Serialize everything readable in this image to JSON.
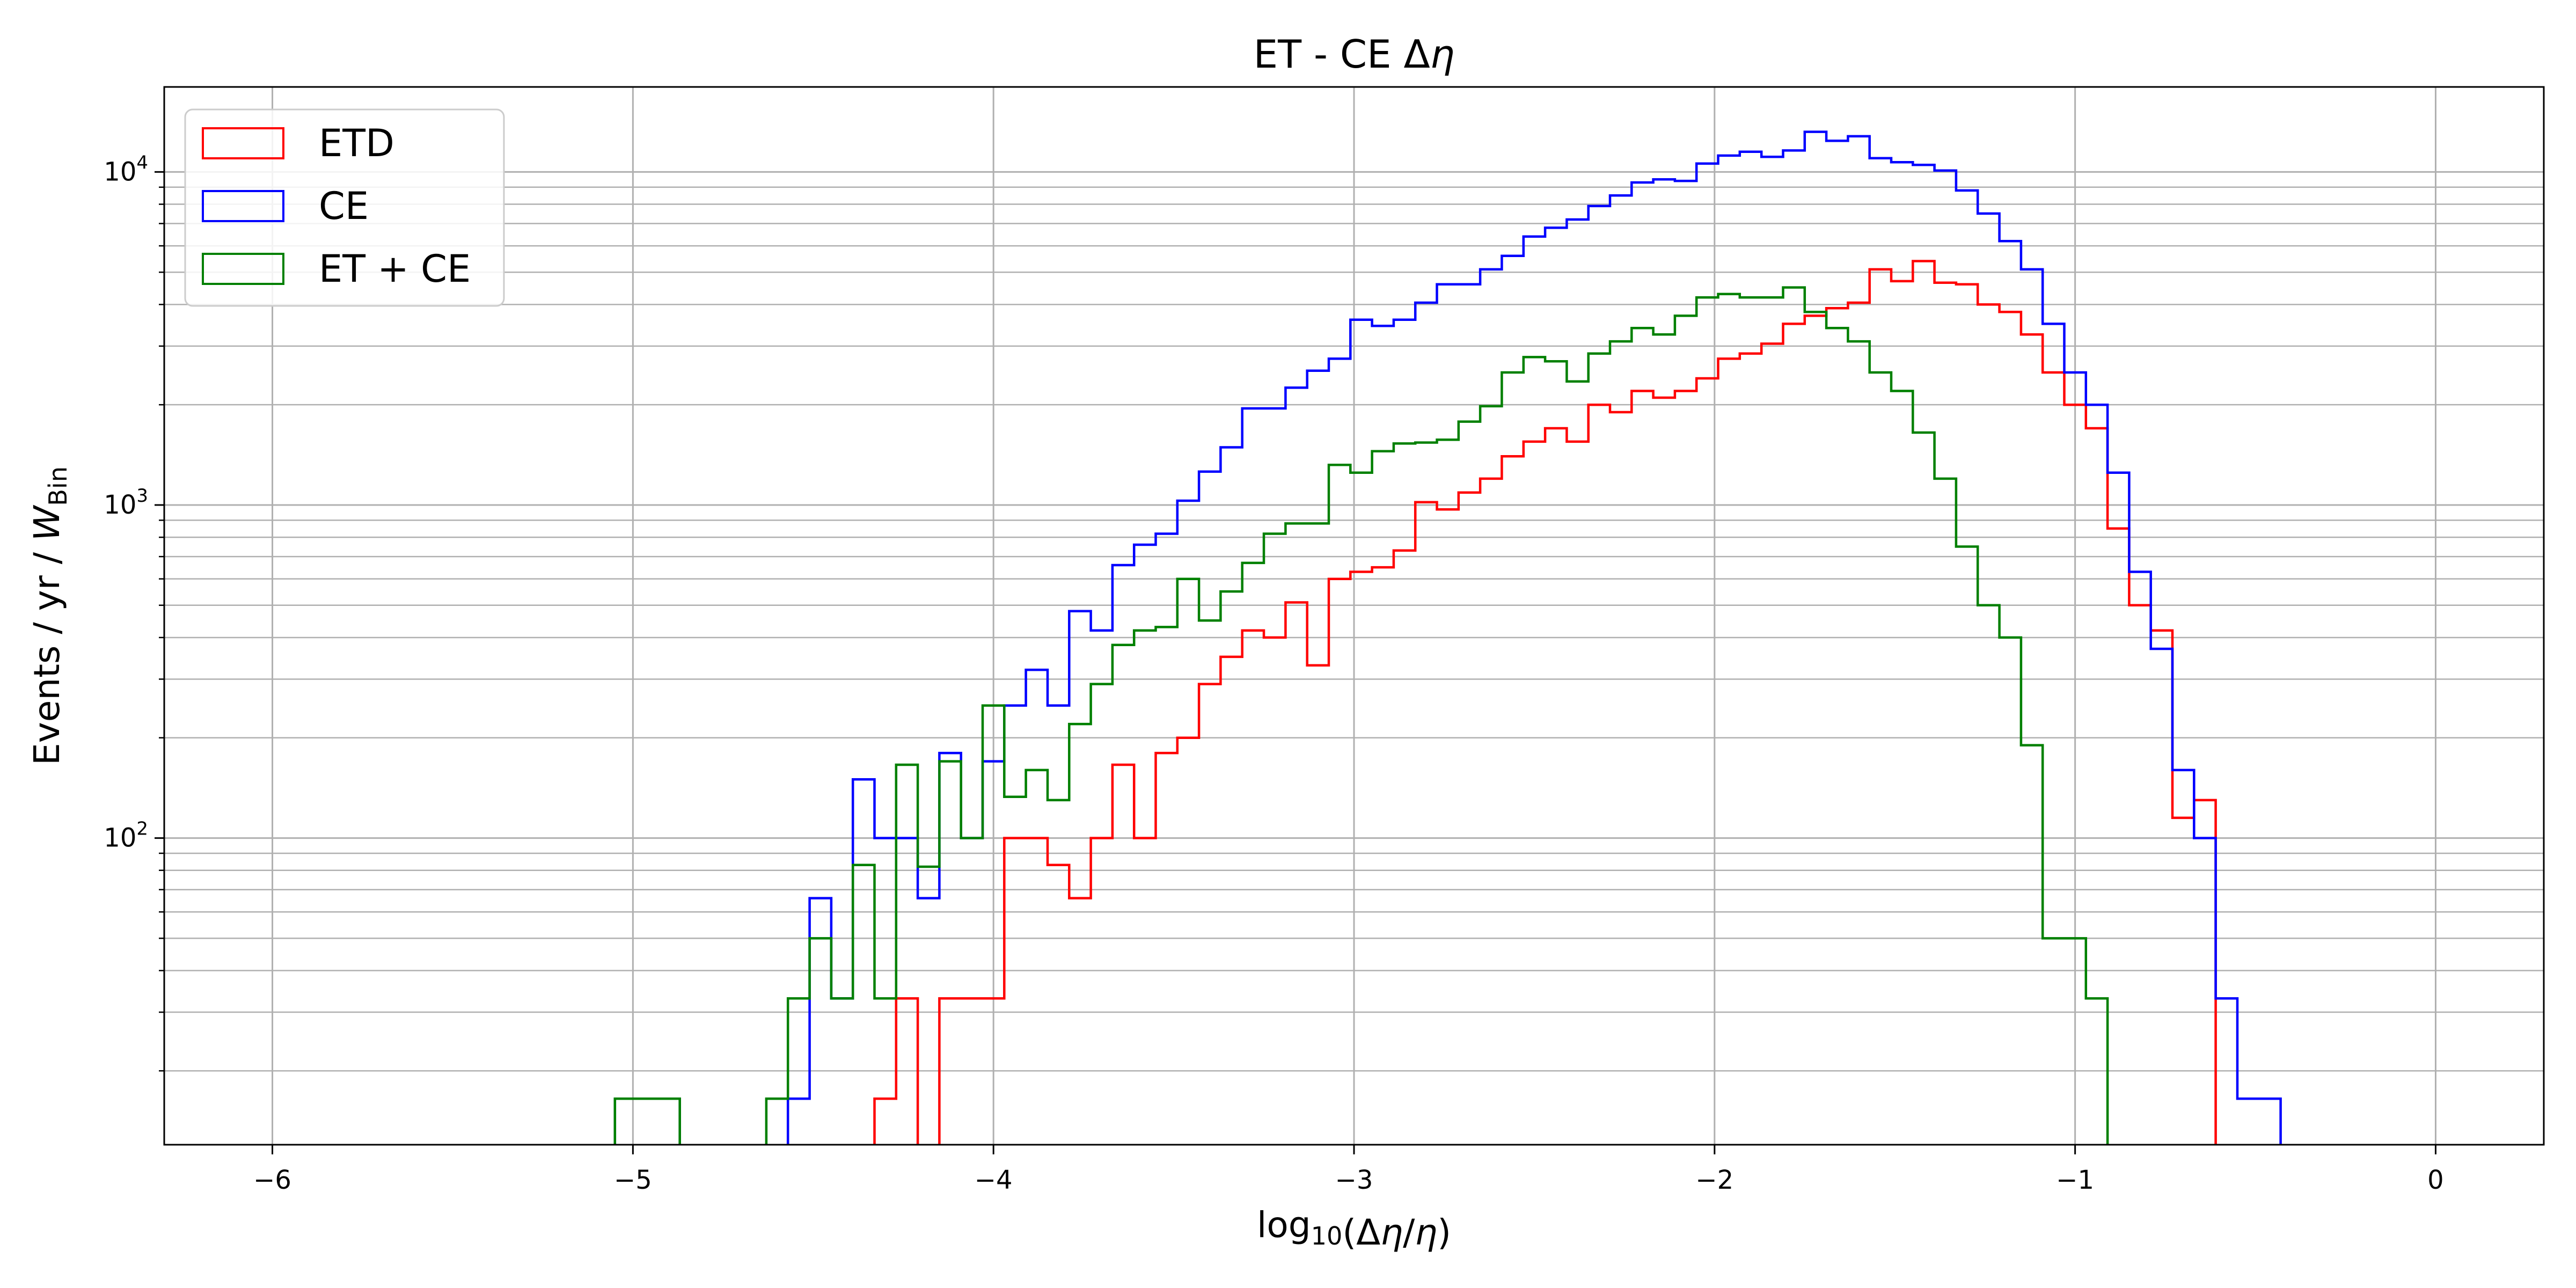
{
  "chart_data": {
    "type": "step-histogram",
    "title": "ET - CE Δη",
    "xlabel": "log10(Δη/η)",
    "ylabel": "Events / yr / W_Bin",
    "xlim": [
      -6.3,
      0.3
    ],
    "ylim": [
      12,
      18000
    ],
    "yscale": "log",
    "grid": true,
    "legend_position": "top-left",
    "x_ticks": [
      -6,
      -5,
      -4,
      -3,
      -2,
      -1,
      0
    ],
    "x_tick_labels": [
      "−6",
      "−5",
      "−4",
      "−3",
      "−2",
      "−1",
      "0"
    ],
    "y_major_ticks": [
      100,
      1000,
      10000
    ],
    "y_tick_labels": [
      "10^2",
      "10^3",
      "10^4"
    ],
    "x_start": -5.05,
    "bin_width": 0.06,
    "series": [
      {
        "name": "ETD",
        "color": "#ff0000",
        "values": [
          0,
          0,
          0,
          0,
          0,
          0,
          0,
          0,
          0,
          0,
          0,
          0,
          16.5,
          33,
          0,
          33,
          33,
          33,
          100,
          100,
          83,
          66,
          100,
          166,
          100,
          180,
          200,
          290,
          350,
          420,
          400,
          510,
          330,
          600,
          630,
          650,
          730,
          1020,
          970,
          1090,
          1200,
          1400,
          1550,
          1700,
          1550,
          2000,
          1900,
          2200,
          2100,
          2200,
          2400,
          2750,
          2850,
          3050,
          3500,
          3700,
          3900,
          4050,
          5100,
          4700,
          5400,
          4650,
          4600,
          4000,
          3800,
          3250,
          2500,
          2000,
          1700,
          850,
          500,
          420,
          115,
          130,
          0
        ]
      },
      {
        "name": "CE",
        "color": "#0000ff",
        "values": [
          16.5,
          16.5,
          16.5,
          0,
          0,
          0,
          0,
          0,
          16.5,
          66,
          33,
          150,
          100,
          100,
          66,
          180,
          100,
          170,
          250,
          320,
          250,
          480,
          420,
          660,
          760,
          820,
          1030,
          1260,
          1490,
          1950,
          1950,
          2250,
          2530,
          2750,
          3600,
          3450,
          3600,
          4050,
          4600,
          4600,
          5100,
          5600,
          6400,
          6800,
          7200,
          7900,
          8500,
          9300,
          9500,
          9400,
          10600,
          11200,
          11500,
          11100,
          11600,
          13200,
          12400,
          12800,
          11000,
          10700,
          10500,
          10100,
          8800,
          7500,
          6200,
          5100,
          3500,
          2500,
          2000,
          1250,
          630,
          370,
          160,
          100,
          33,
          16.5,
          16.5
        ]
      },
      {
        "name": "ET + CE",
        "color": "#008000",
        "values": [
          16.5,
          16.5,
          16.5,
          0,
          0,
          0,
          0,
          16.5,
          33,
          50,
          33,
          83,
          33,
          166,
          82,
          170,
          100,
          250,
          133,
          160,
          130,
          220,
          290,
          380,
          420,
          430,
          600,
          450,
          550,
          670,
          820,
          880,
          880,
          1320,
          1250,
          1450,
          1530,
          1540,
          1570,
          1780,
          1980,
          2500,
          2780,
          2700,
          2350,
          2850,
          3100,
          3400,
          3250,
          3700,
          4200,
          4300,
          4200,
          4200,
          4500,
          3800,
          3400,
          3100,
          2500,
          2200,
          1650,
          1200,
          750,
          500,
          400,
          190,
          50,
          50,
          33,
          0
        ]
      }
    ]
  }
}
